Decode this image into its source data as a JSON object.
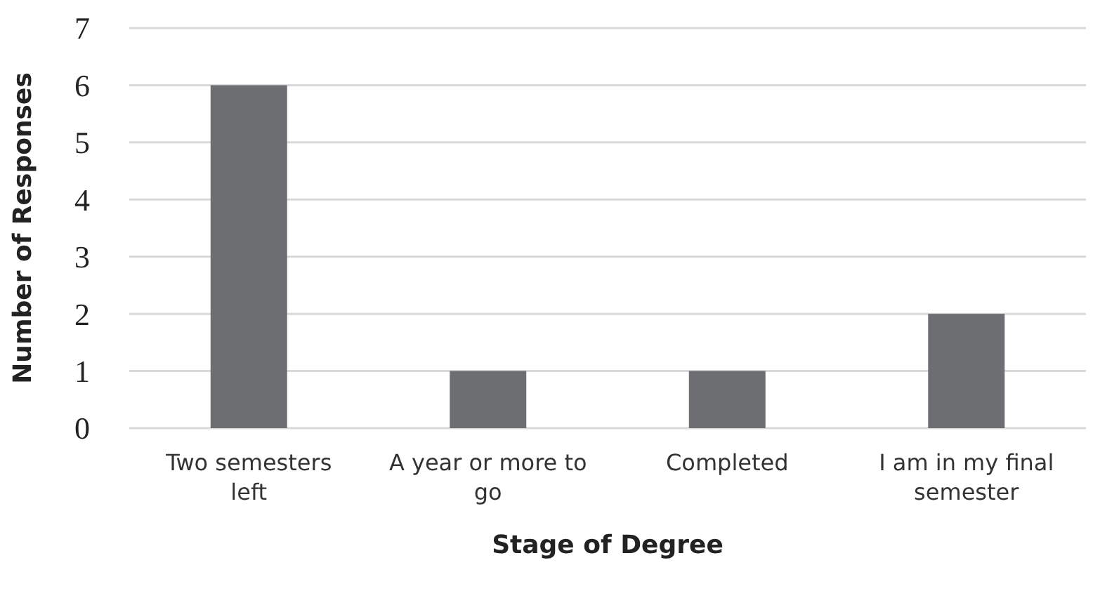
{
  "chart_data": {
    "type": "bar",
    "xlabel": "Stage of Degree",
    "ylabel": "Number of Responses",
    "categories": [
      "Two semesters left",
      "A year or more to go",
      "Completed",
      "I am in my final semester"
    ],
    "values": [
      6,
      1,
      1,
      2
    ],
    "color": "#6d6e71",
    "ylim": [
      0,
      7
    ],
    "yticks": [
      0,
      1,
      2,
      3,
      4,
      5,
      6,
      7
    ],
    "grid": "y"
  }
}
